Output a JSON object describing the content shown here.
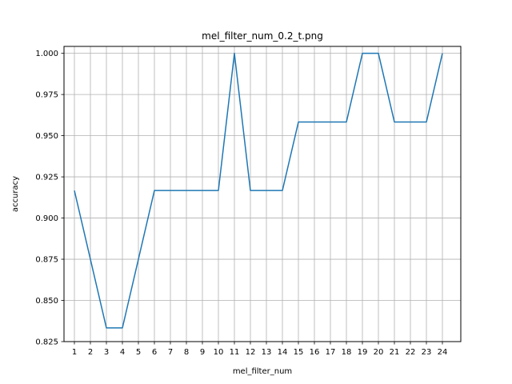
{
  "chart_data": {
    "type": "line",
    "title": "mel_filter_num_0.2_t.png",
    "xlabel": "mel_filter_num",
    "ylabel": "accuracy",
    "x": [
      1,
      2,
      3,
      4,
      5,
      6,
      7,
      8,
      9,
      10,
      11,
      12,
      13,
      14,
      15,
      16,
      17,
      18,
      19,
      20,
      21,
      22,
      23,
      24
    ],
    "series": [
      {
        "values": [
          0.9167,
          0.875,
          0.8333,
          0.8333,
          0.875,
          0.9167,
          0.9167,
          0.9167,
          0.9167,
          0.9167,
          1.0,
          0.9167,
          0.9167,
          0.9167,
          0.9583,
          0.9583,
          0.9583,
          0.9583,
          1.0,
          1.0,
          0.9583,
          0.9583,
          0.9583,
          1.0
        ],
        "color": "#1f77b4"
      }
    ],
    "yticks": [
      "0.825",
      "0.850",
      "0.875",
      "0.900",
      "0.925",
      "0.950",
      "0.975",
      "1.000"
    ],
    "xlim": [
      0.35,
      25.15
    ],
    "ylim": [
      0.825,
      1.0042
    ],
    "grid": true
  }
}
